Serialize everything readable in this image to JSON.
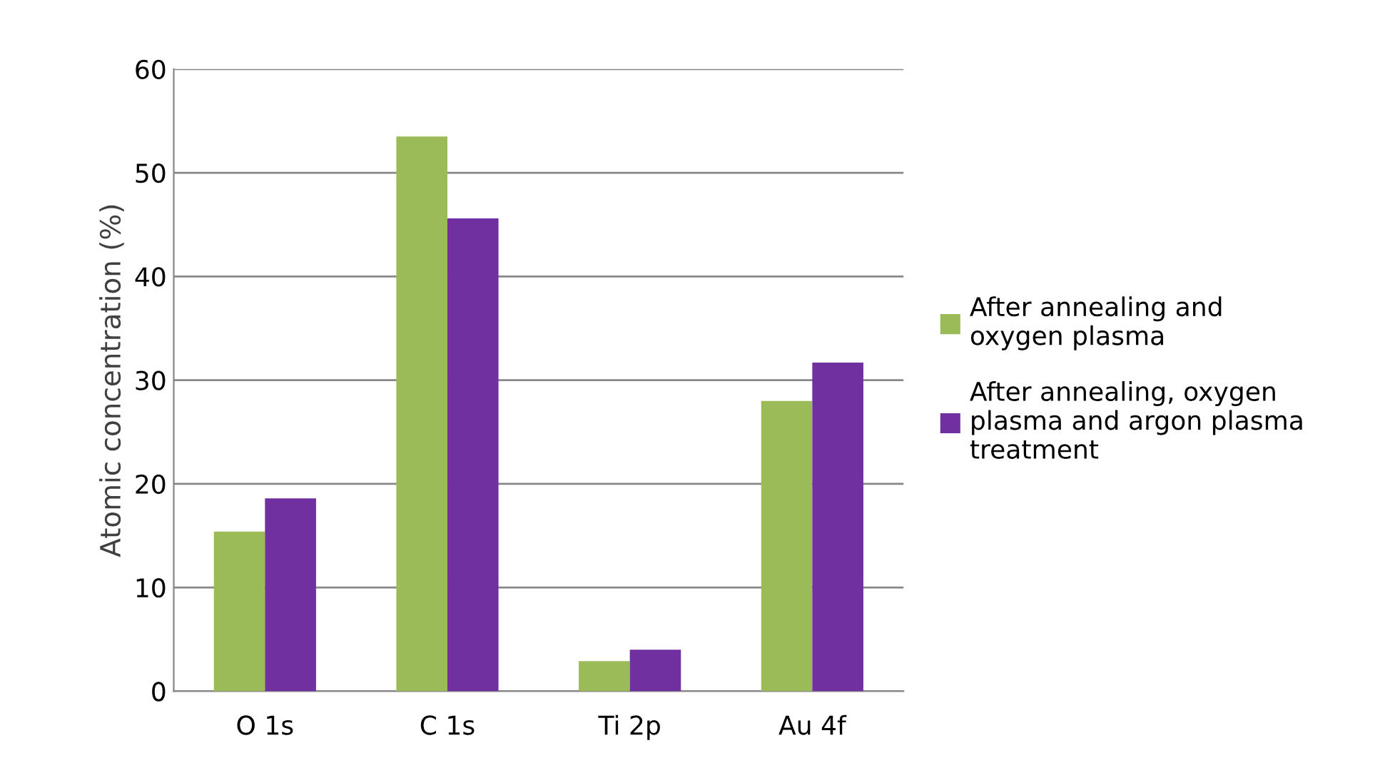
{
  "chart_data": {
    "type": "bar",
    "ylabel": "Atomic concentration (%)",
    "categories": [
      "O 1s",
      "C 1s",
      "Ti 2p",
      "Au 4f"
    ],
    "series": [
      {
        "name": "After annealing and oxygen plasma",
        "color": "#9bbb59",
        "values": [
          15.4,
          53.5,
          2.9,
          28.0
        ]
      },
      {
        "name": "After annealing, oxygen plasma and argon plasma treatment",
        "color": "#7030a0",
        "values": [
          18.6,
          45.6,
          4.0,
          31.7
        ]
      }
    ],
    "ylim": [
      0,
      60
    ],
    "yticks": [
      0,
      10,
      20,
      30,
      40,
      50,
      60
    ],
    "grid": "y",
    "legend": "right"
  }
}
